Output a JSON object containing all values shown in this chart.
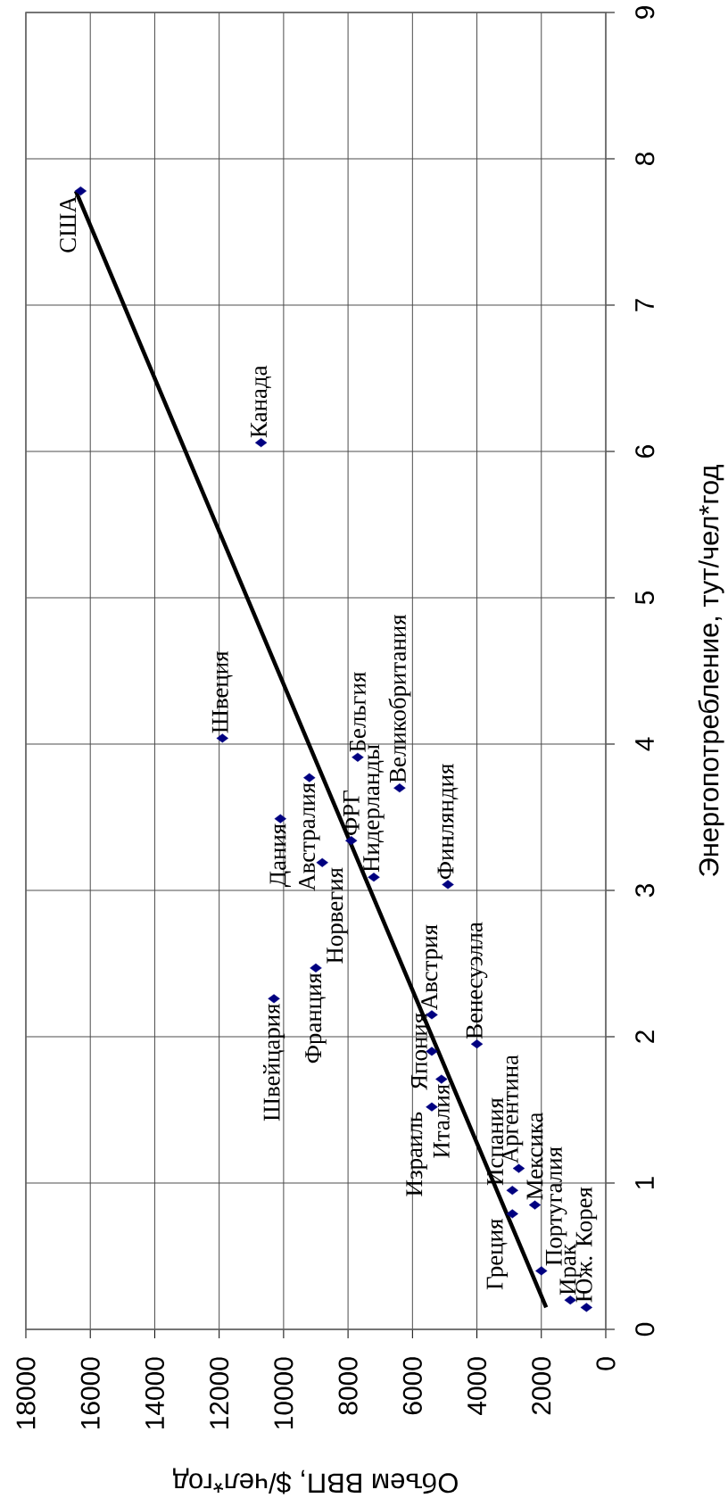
{
  "chart_data": {
    "type": "scatter",
    "xlabel": "Объем ВВП, $/чел*год",
    "ylabel": "Энергопотребление,  тут/чел*год",
    "xlim": [
      18000,
      0
    ],
    "ylim": [
      0,
      9
    ],
    "xticks": [
      18000,
      16000,
      14000,
      12000,
      10000,
      8000,
      6000,
      4000,
      2000,
      0
    ],
    "yticks": [
      0,
      1,
      2,
      3,
      4,
      5,
      6,
      7,
      8,
      9
    ],
    "grid": true,
    "marker": "diamond",
    "series": [
      {
        "color": "#000080",
        "x": [
          16300,
          10700,
          11900,
          7700,
          9200,
          6400,
          10100,
          7900,
          8800,
          7200,
          4900,
          9000,
          10300,
          5400,
          4000,
          5400,
          5100,
          5400,
          2900,
          2700,
          2200,
          2900,
          2000,
          1100,
          600
        ],
        "values": [
          7.78,
          6.06,
          4.04,
          3.91,
          3.77,
          3.7,
          3.49,
          3.34,
          3.19,
          3.09,
          3.04,
          2.47,
          2.26,
          2.15,
          1.95,
          1.9,
          1.71,
          1.52,
          0.95,
          1.1,
          0.85,
          0.79,
          0.4,
          0.2,
          0.15
        ]
      },
      {
        "type": "line",
        "color": "#000000",
        "marker": "none",
        "x": [
          1850,
          16450
        ],
        "values": [
          0.15,
          7.78
        ]
      }
    ],
    "annotations": [
      {
        "text": "США",
        "x": 16300,
        "y": 7.78
      },
      {
        "text": "Канада",
        "x": 10700,
        "y": 6.06
      },
      {
        "text": "Швеция",
        "x": 11900,
        "y": 4.04
      },
      {
        "text": "Бельгия",
        "x": 7700,
        "y": 3.91
      },
      {
        "text": "Австралия",
        "x": 9200,
        "y": 3.77
      },
      {
        "text": "Великобритания",
        "x": 6400,
        "y": 3.7
      },
      {
        "text": "Дания",
        "x": 10100,
        "y": 3.49
      },
      {
        "text": "ФРГ",
        "x": 7900,
        "y": 3.34
      },
      {
        "text": "Норвегия",
        "x": 8800,
        "y": 3.19
      },
      {
        "text": "Нидерланды",
        "x": 7200,
        "y": 3.09
      },
      {
        "text": "Финляндия",
        "x": 4900,
        "y": 3.04
      },
      {
        "text": "Франция",
        "x": 9000,
        "y": 2.47
      },
      {
        "text": "Швейцария",
        "x": 10300,
        "y": 2.26
      },
      {
        "text": "Австрия",
        "x": 5400,
        "y": 2.15
      },
      {
        "text": "Венесуэлла",
        "x": 4000,
        "y": 1.95
      },
      {
        "text": "Япония",
        "x": 5400,
        "y": 1.9
      },
      {
        "text": "Италия",
        "x": 5100,
        "y": 1.71
      },
      {
        "text": "Израиль",
        "x": 5400,
        "y": 1.52
      },
      {
        "text": "Испания",
        "x": 2900,
        "y": 0.95
      },
      {
        "text": "Аргентина",
        "x": 2700,
        "y": 1.1
      },
      {
        "text": "Мексика",
        "x": 2200,
        "y": 0.85
      },
      {
        "text": "Греция",
        "x": 2900,
        "y": 0.79
      },
      {
        "text": "Португалия",
        "x": 2000,
        "y": 0.4
      },
      {
        "text": "Ирак",
        "x": 1100,
        "y": 0.2
      },
      {
        "text": "Юж. Корея",
        "x": 600,
        "y": 0.15
      }
    ]
  }
}
